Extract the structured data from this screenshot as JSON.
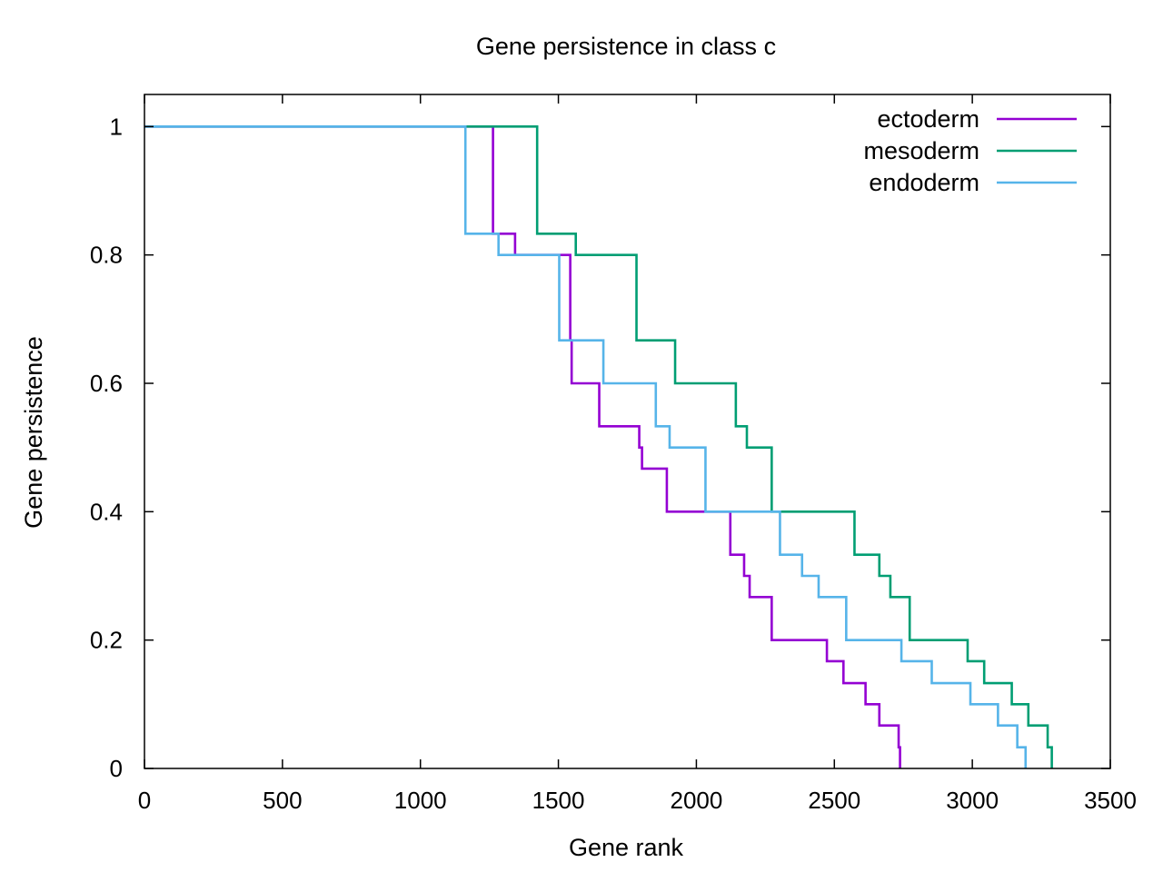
{
  "chart_data": {
    "type": "line",
    "step": true,
    "title": "Gene persistence in class c",
    "xlabel": "Gene rank",
    "ylabel": "Gene persistence",
    "xlim": [
      0,
      3500
    ],
    "ylim": [
      0,
      1.05
    ],
    "xticks": [
      0,
      500,
      1000,
      1500,
      2000,
      2500,
      3000,
      3500
    ],
    "xtick_labels": [
      "0",
      "500",
      "1000",
      "1500",
      "2000",
      "2500",
      "3000",
      "3500"
    ],
    "yticks": [
      0,
      0.2,
      0.4,
      0.6,
      0.8,
      1
    ],
    "ytick_labels": [
      "0",
      "0.2",
      "0.4",
      "0.6",
      "0.8",
      "1"
    ],
    "grid": false,
    "legend_position": "top-right",
    "series": [
      {
        "name": "ectoderm",
        "color": "#9400d3",
        "x": [
          0,
          1263,
          1343,
          1543,
          1548,
          1648,
          1793,
          1803,
          1893,
          2123,
          2173,
          2193,
          2273,
          2473,
          2533,
          2613,
          2663,
          2733,
          2738
        ],
        "y": [
          1,
          0.833,
          0.8,
          0.667,
          0.6,
          0.533,
          0.5,
          0.467,
          0.4,
          0.333,
          0.3,
          0.267,
          0.2,
          0.167,
          0.133,
          0.1,
          0.067,
          0.033,
          0
        ]
      },
      {
        "name": "mesoderm",
        "color": "#009e73",
        "x": [
          0,
          1423,
          1563,
          1783,
          1923,
          2143,
          2183,
          2273,
          2573,
          2663,
          2703,
          2773,
          2983,
          3043,
          3143,
          3203,
          3273,
          3288
        ],
        "y": [
          1,
          0.833,
          0.8,
          0.667,
          0.6,
          0.533,
          0.5,
          0.4,
          0.333,
          0.3,
          0.267,
          0.2,
          0.167,
          0.133,
          0.1,
          0.067,
          0.033,
          0
        ]
      },
      {
        "name": "endoderm",
        "color": "#56b4e9",
        "x": [
          0,
          1163,
          1283,
          1503,
          1663,
          1853,
          1903,
          2033,
          2303,
          2383,
          2443,
          2543,
          2743,
          2853,
          2993,
          3093,
          3163,
          3193
        ],
        "y": [
          1,
          0.833,
          0.8,
          0.667,
          0.6,
          0.533,
          0.5,
          0.4,
          0.333,
          0.3,
          0.267,
          0.2,
          0.167,
          0.133,
          0.1,
          0.067,
          0.033,
          0
        ]
      }
    ]
  }
}
